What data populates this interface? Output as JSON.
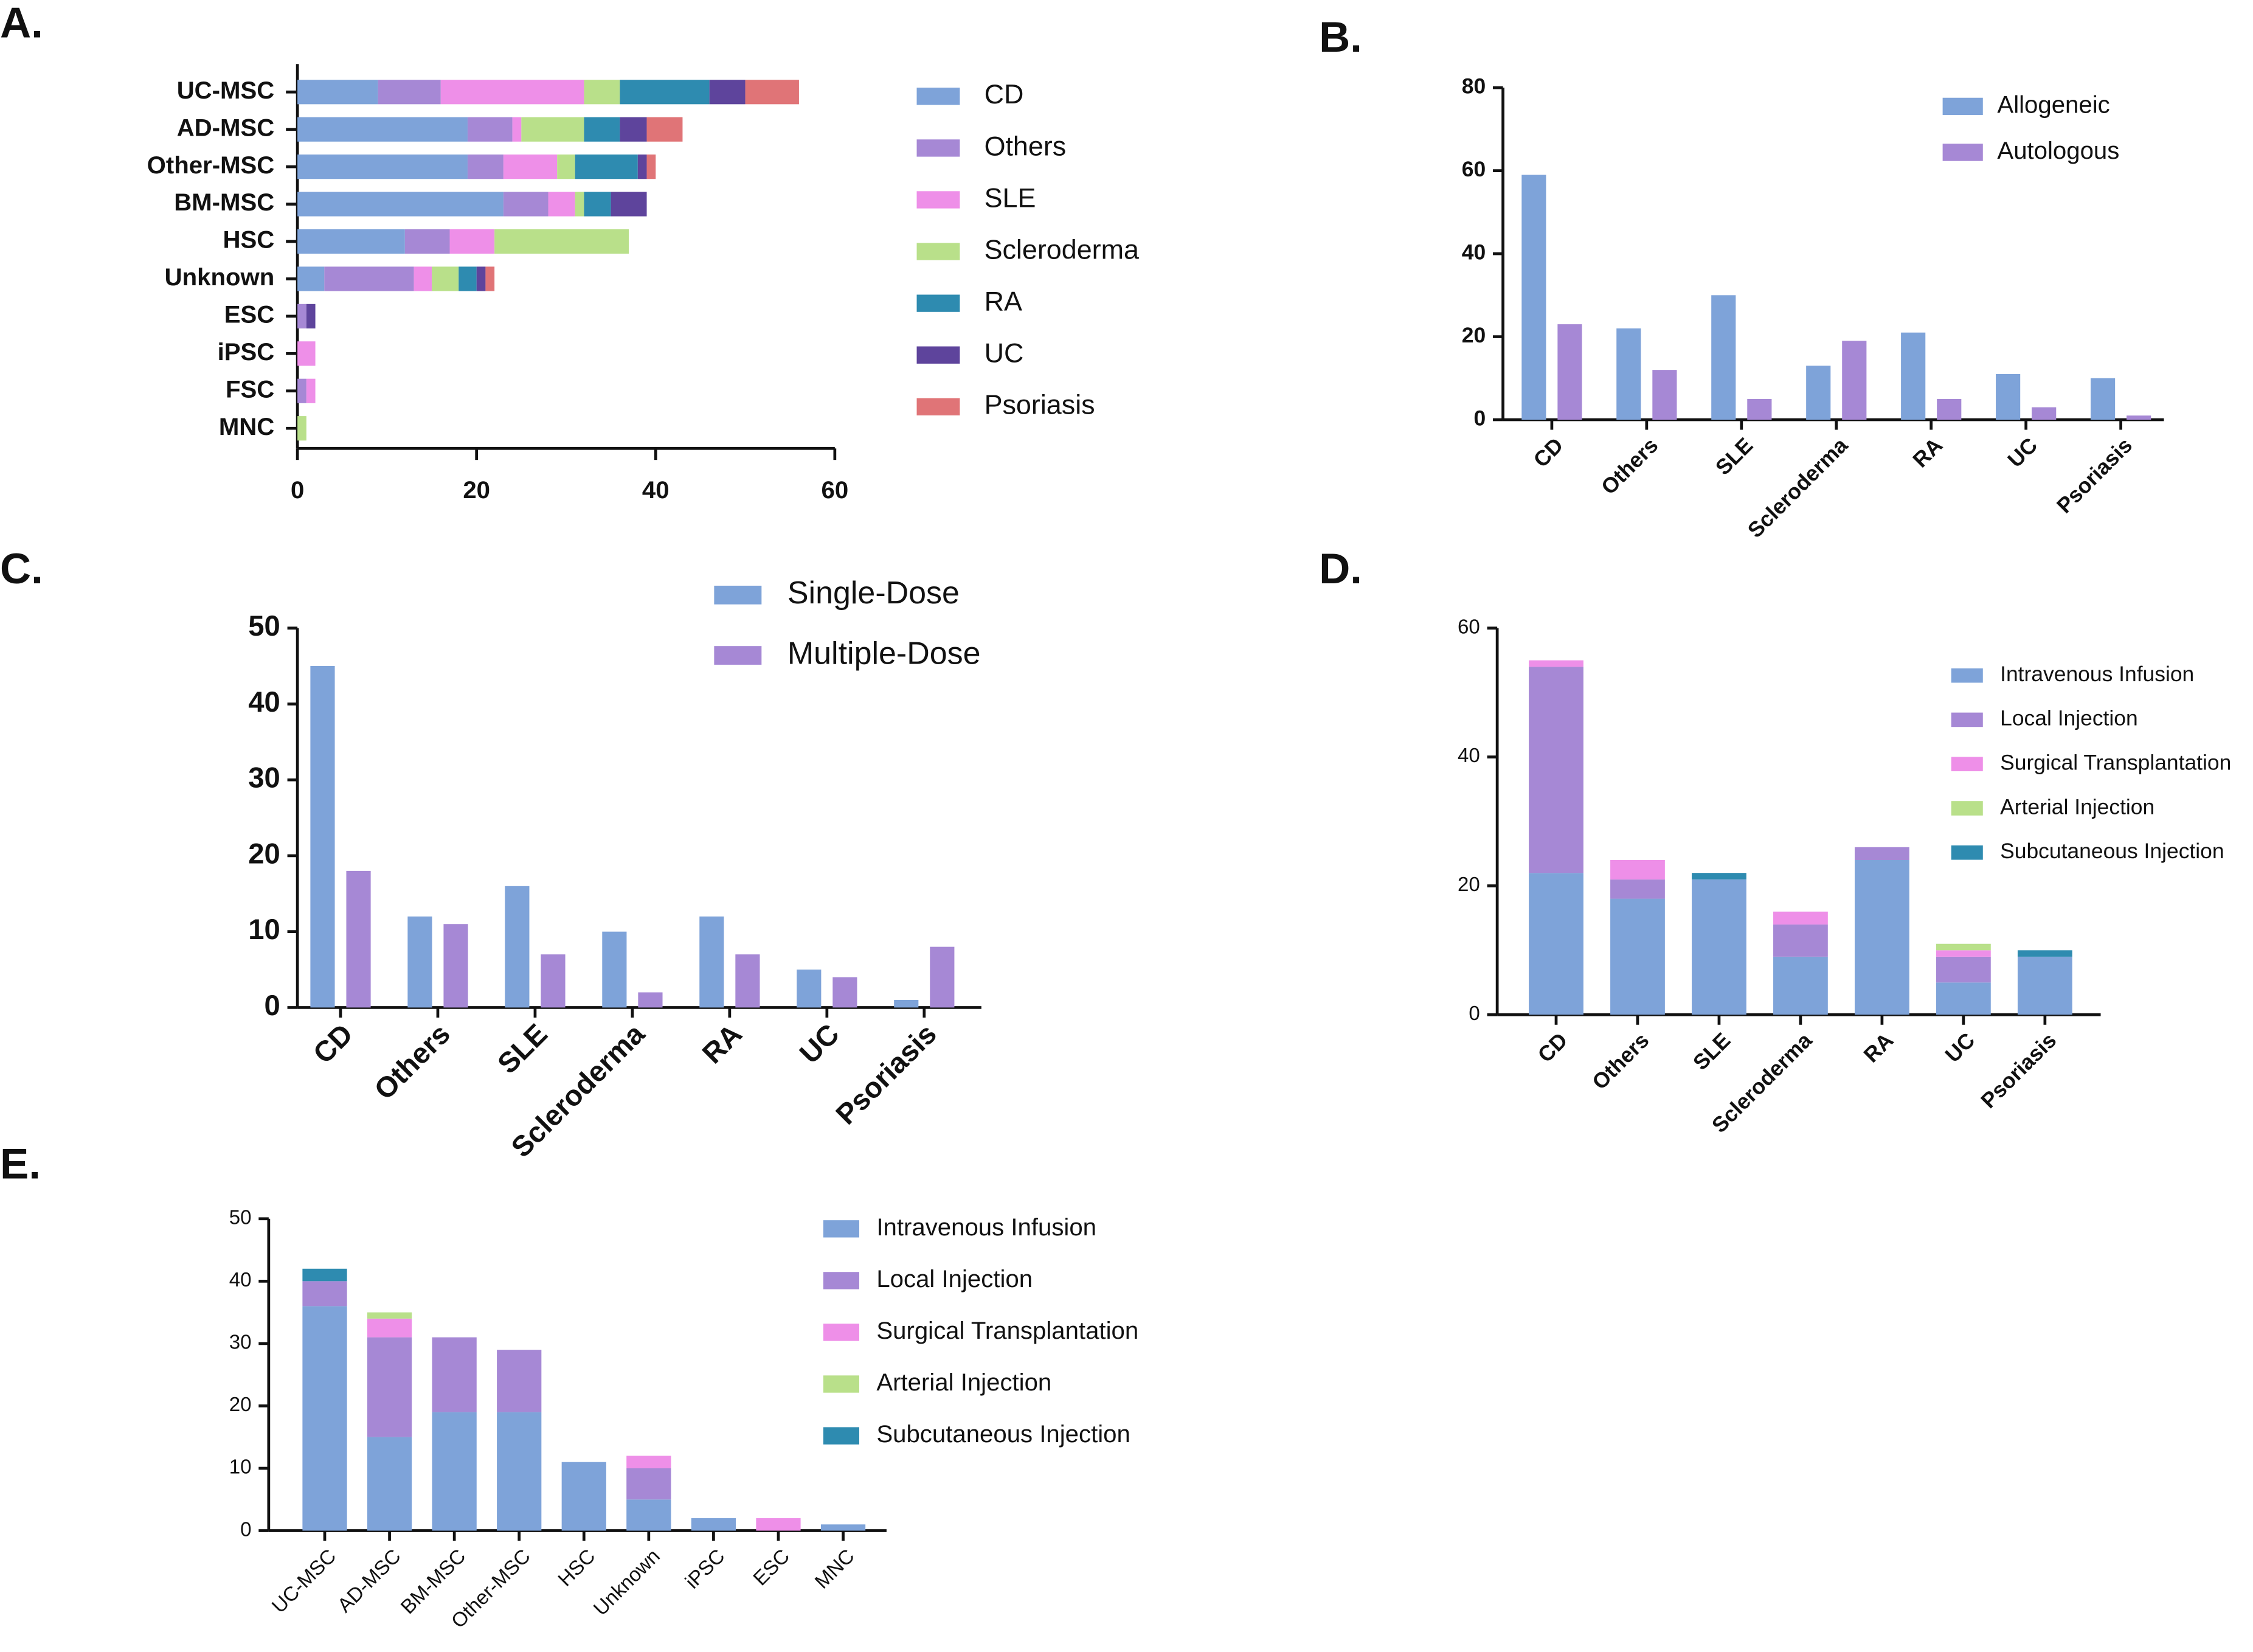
{
  "chart_data": [
    {
      "type": "bar",
      "label": "A.",
      "orientation": "horizontal",
      "stacked": true,
      "categories": [
        "UC-MSC",
        "AD-MSC",
        "Other-MSC",
        "BM-MSC",
        "HSC",
        "Unknown",
        "ESC",
        "iPSC",
        "FSC",
        "MNC"
      ],
      "xlim": [
        0,
        60
      ],
      "xticks": [
        0,
        20,
        40,
        60
      ],
      "series": [
        {
          "name": "CD",
          "color": "#7ea3d9",
          "values": [
            9,
            19,
            19,
            23,
            12,
            3,
            0,
            0,
            0,
            0
          ]
        },
        {
          "name": "Others",
          "color": "#a688d5",
          "values": [
            7,
            5,
            4,
            5,
            5,
            10,
            1,
            0,
            1,
            0
          ]
        },
        {
          "name": "SLE",
          "color": "#ee8fe8",
          "values": [
            16,
            1,
            6,
            3,
            5,
            2,
            0,
            2,
            1,
            0
          ]
        },
        {
          "name": "Scleroderma",
          "color": "#b9e08a",
          "values": [
            4,
            7,
            2,
            1,
            15,
            3,
            0,
            0,
            0,
            1
          ]
        },
        {
          "name": "RA",
          "color": "#2e8bb0",
          "values": [
            10,
            4,
            7,
            3,
            0,
            2,
            0,
            0,
            0,
            0
          ]
        },
        {
          "name": "UC",
          "color": "#5e449c",
          "values": [
            4,
            3,
            1,
            4,
            0,
            1,
            1,
            0,
            0,
            0
          ]
        },
        {
          "name": "Psoriasis",
          "color": "#e07477",
          "values": [
            6,
            4,
            1,
            0,
            0,
            1,
            0,
            0,
            0,
            0
          ]
        }
      ]
    },
    {
      "type": "bar",
      "label": "B.",
      "stacked": false,
      "categories": [
        "CD",
        "Others",
        "SLE",
        "Scleroderma",
        "RA",
        "UC",
        "Psoriasis"
      ],
      "ylim": [
        0,
        80
      ],
      "yticks": [
        0,
        20,
        40,
        60,
        80
      ],
      "series": [
        {
          "name": "Allogeneic",
          "color": "#7ea3d9",
          "values": [
            59,
            22,
            30,
            13,
            21,
            11,
            10
          ]
        },
        {
          "name": "Autologous",
          "color": "#a688d5",
          "values": [
            23,
            12,
            5,
            19,
            5,
            3,
            1
          ]
        }
      ]
    },
    {
      "type": "bar",
      "label": "C.",
      "stacked": false,
      "categories": [
        "CD",
        "Others",
        "SLE",
        "Scleroderma",
        "RA",
        "UC",
        "Psoriasis"
      ],
      "ylim": [
        0,
        50
      ],
      "yticks": [
        0,
        10,
        20,
        30,
        40,
        50
      ],
      "series": [
        {
          "name": "Single-Dose",
          "color": "#7ea3d9",
          "values": [
            45,
            12,
            16,
            10,
            12,
            5,
            1
          ]
        },
        {
          "name": "Multiple-Dose",
          "color": "#a688d5",
          "values": [
            18,
            11,
            7,
            2,
            7,
            4,
            8
          ]
        }
      ]
    },
    {
      "type": "bar",
      "label": "D.",
      "stacked": true,
      "categories": [
        "CD",
        "Others",
        "SLE",
        "Scleroderma",
        "RA",
        "UC",
        "Psoriasis"
      ],
      "ylim": [
        0,
        60
      ],
      "yticks": [
        0,
        20,
        40,
        60
      ],
      "series": [
        {
          "name": "Intravenous Infusion",
          "color": "#7ea3d9",
          "values": [
            22,
            18,
            21,
            9,
            24,
            5,
            9
          ]
        },
        {
          "name": "Local Injection",
          "color": "#a688d5",
          "values": [
            32,
            3,
            0,
            5,
            2,
            4,
            0
          ]
        },
        {
          "name": "Surgical Transplantation",
          "color": "#ee8fe8",
          "values": [
            1,
            3,
            0,
            2,
            0,
            1,
            0
          ]
        },
        {
          "name": "Arterial Injection",
          "color": "#b9e08a",
          "values": [
            0,
            0,
            0,
            0,
            0,
            1,
            0
          ]
        },
        {
          "name": "Subcutaneous Injection",
          "color": "#2e8bb0",
          "values": [
            0,
            0,
            1,
            0,
            0,
            0,
            1
          ]
        }
      ]
    },
    {
      "type": "bar",
      "label": "E.",
      "stacked": true,
      "categories": [
        "UC-MSC",
        "AD-MSC",
        "BM-MSC",
        "Other-MSC",
        "HSC",
        "Unknown",
        "iPSC",
        "ESC",
        "MNC"
      ],
      "ylim": [
        0,
        50
      ],
      "yticks": [
        0,
        10,
        20,
        30,
        40,
        50
      ],
      "series": [
        {
          "name": "Intravenous Infusion",
          "color": "#7ea3d9",
          "values": [
            36,
            15,
            19,
            19,
            11,
            5,
            2,
            0,
            1
          ]
        },
        {
          "name": "Local Injection",
          "color": "#a688d5",
          "values": [
            4,
            16,
            12,
            10,
            0,
            5,
            0,
            0,
            0
          ]
        },
        {
          "name": "Surgical Transplantation",
          "color": "#ee8fe8",
          "values": [
            0,
            3,
            0,
            0,
            0,
            2,
            0,
            2,
            0
          ]
        },
        {
          "name": "Arterial Injection",
          "color": "#b9e08a",
          "values": [
            0,
            1,
            0,
            0,
            0,
            0,
            0,
            0,
            0
          ]
        },
        {
          "name": "Subcutaneous Injection",
          "color": "#2e8bb0",
          "values": [
            2,
            0,
            0,
            0,
            0,
            0,
            0,
            0,
            0
          ]
        }
      ]
    }
  ]
}
